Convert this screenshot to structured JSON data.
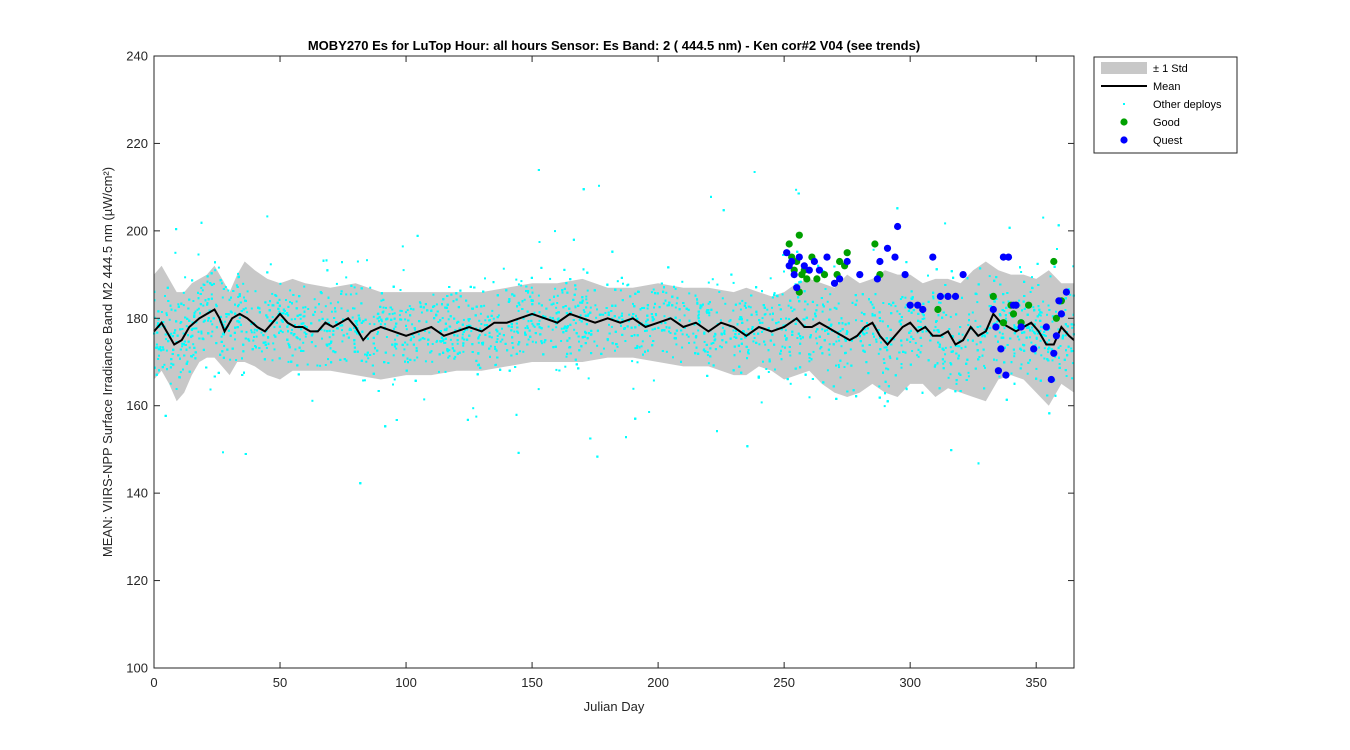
{
  "chart_data": {
    "type": "scatter",
    "title": "MOBY270   Es for LuTop  Hour: all hours  Sensor: Es Band: 2 ( 444.5 nm)  - Ken cor#2 V04 (see trends)",
    "xlabel": "Julian Day",
    "ylabel": "MEAN: VIIRS-NPP Surface Irradiance Band M2 444.5 nm (µW/cm²)",
    "xlim": [
      0,
      365
    ],
    "ylim": [
      100,
      240
    ],
    "xticks": [
      0,
      50,
      100,
      150,
      200,
      250,
      300,
      350
    ],
    "yticks": [
      100,
      120,
      140,
      160,
      180,
      200,
      220,
      240
    ],
    "grid": false,
    "legend_position": "outside-top-right",
    "legend": [
      {
        "label": "± 1 Std",
        "kind": "band",
        "color": "#c8c8c8"
      },
      {
        "label": "Mean",
        "kind": "line",
        "color": "#000000"
      },
      {
        "label": "Other deploys",
        "kind": "dot",
        "color": "#00ffff"
      },
      {
        "label": "Good",
        "kind": "marker",
        "color": "#00a000"
      },
      {
        "label": "Quest",
        "kind": "marker",
        "color": "#0000ff"
      }
    ],
    "mean": {
      "name": "Mean",
      "x": [
        0,
        3,
        5,
        8,
        11,
        14,
        18,
        21,
        24,
        26,
        28,
        31,
        34,
        37,
        41,
        44,
        47,
        50,
        53,
        56,
        59,
        62,
        65,
        68,
        71,
        74,
        77,
        80,
        83,
        86,
        90,
        95,
        100,
        105,
        110,
        115,
        120,
        125,
        130,
        135,
        140,
        145,
        150,
        155,
        160,
        165,
        170,
        175,
        180,
        185,
        190,
        195,
        200,
        205,
        210,
        215,
        220,
        225,
        230,
        235,
        240,
        245,
        250,
        255,
        258,
        261,
        264,
        267,
        270,
        273,
        276,
        279,
        282,
        285,
        288,
        291,
        294,
        297,
        300,
        303,
        306,
        309,
        312,
        315,
        318,
        321,
        324,
        327,
        330,
        333,
        336,
        339,
        342,
        345,
        348,
        351,
        354,
        357,
        360,
        363,
        365
      ],
      "y": [
        177,
        179,
        177,
        174,
        175,
        178,
        180,
        181,
        182,
        180,
        177,
        180,
        181,
        180,
        178,
        177,
        179,
        181,
        179,
        178,
        178,
        177,
        177,
        179,
        178,
        179,
        180,
        178,
        175,
        177,
        178,
        177,
        176,
        177,
        178,
        176,
        177,
        178,
        177,
        179,
        179,
        180,
        181,
        180,
        179,
        181,
        180,
        179,
        180,
        179,
        180,
        178,
        179,
        180,
        178,
        179,
        177,
        179,
        178,
        176,
        178,
        177,
        178,
        180,
        178,
        178,
        179,
        178,
        177,
        176,
        175,
        176,
        178,
        179,
        176,
        174,
        176,
        178,
        179,
        177,
        178,
        176,
        176,
        177,
        174,
        175,
        178,
        176,
        177,
        181,
        179,
        178,
        177,
        178,
        179,
        177,
        174,
        174,
        178,
        176,
        175
      ]
    },
    "std_band": {
      "name": "± 1 Std",
      "x": [
        0,
        3,
        6,
        9,
        12,
        15,
        18,
        21,
        24,
        27,
        30,
        33,
        36,
        40,
        45,
        50,
        55,
        60,
        70,
        80,
        90,
        100,
        110,
        120,
        130,
        140,
        150,
        160,
        170,
        180,
        190,
        200,
        210,
        220,
        230,
        235,
        240,
        245,
        250,
        255,
        260,
        265,
        270,
        275,
        280,
        285,
        290,
        295,
        300,
        305,
        310,
        315,
        320,
        325,
        330,
        335,
        340,
        345,
        350,
        355,
        360,
        365
      ],
      "upper": [
        190,
        192,
        189,
        186,
        186,
        188,
        189,
        190,
        192,
        189,
        186,
        190,
        193,
        191,
        189,
        188,
        189,
        188,
        187,
        188,
        186,
        186,
        186,
        186,
        186,
        187,
        188,
        188,
        189,
        187,
        187,
        188,
        187,
        187,
        186,
        187,
        186,
        185,
        186,
        188,
        189,
        188,
        187,
        190,
        188,
        189,
        191,
        190,
        190,
        188,
        189,
        189,
        188,
        191,
        193,
        191,
        190,
        190,
        189,
        191,
        188,
        188
      ],
      "lower": [
        166,
        168,
        165,
        161,
        163,
        167,
        170,
        171,
        171,
        169,
        167,
        170,
        170,
        169,
        167,
        166,
        168,
        168,
        168,
        167,
        166,
        167,
        167,
        168,
        168,
        169,
        170,
        170,
        170,
        171,
        171,
        170,
        169,
        169,
        167,
        167,
        169,
        168,
        166,
        167,
        168,
        165,
        163,
        162,
        163,
        165,
        163,
        162,
        165,
        165,
        162,
        164,
        163,
        162,
        161,
        166,
        167,
        166,
        163,
        160,
        165,
        163
      ]
    },
    "other_deploys_note": "cyan point cloud — dense scatter around the mean (~165–195), sparse outliers 135–230",
    "good": {
      "name": "Good",
      "x": [
        252,
        253,
        254,
        255,
        256,
        256,
        257,
        258,
        259,
        261,
        263,
        266,
        271,
        272,
        274,
        275,
        286,
        288,
        311,
        333,
        337,
        340,
        341,
        342,
        344,
        347,
        357,
        358,
        360
      ],
      "y": [
        197,
        194,
        191,
        193,
        186,
        199,
        190,
        191,
        189,
        194,
        189,
        190,
        190,
        193,
        192,
        195,
        197,
        190,
        182,
        185,
        179,
        183,
        181,
        183,
        179,
        183,
        193,
        180,
        184
      ]
    },
    "quest": {
      "name": "Quest",
      "x": [
        251,
        252,
        253,
        254,
        255,
        256,
        258,
        260,
        262,
        264,
        267,
        270,
        272,
        275,
        280,
        287,
        288,
        291,
        294,
        295,
        298,
        300,
        303,
        305,
        309,
        312,
        315,
        318,
        321,
        333,
        334,
        335,
        336,
        337,
        338,
        339,
        341,
        342,
        344,
        349,
        354,
        356,
        357,
        358,
        359,
        360,
        362
      ],
      "y": [
        195,
        192,
        193,
        190,
        187,
        194,
        192,
        191,
        193,
        191,
        194,
        188,
        189,
        193,
        190,
        189,
        193,
        196,
        194,
        201,
        190,
        183,
        183,
        182,
        194,
        185,
        185,
        185,
        190,
        182,
        178,
        168,
        173,
        194,
        167,
        194,
        183,
        183,
        178,
        173,
        178,
        166,
        172,
        176,
        184,
        181,
        186
      ]
    }
  }
}
